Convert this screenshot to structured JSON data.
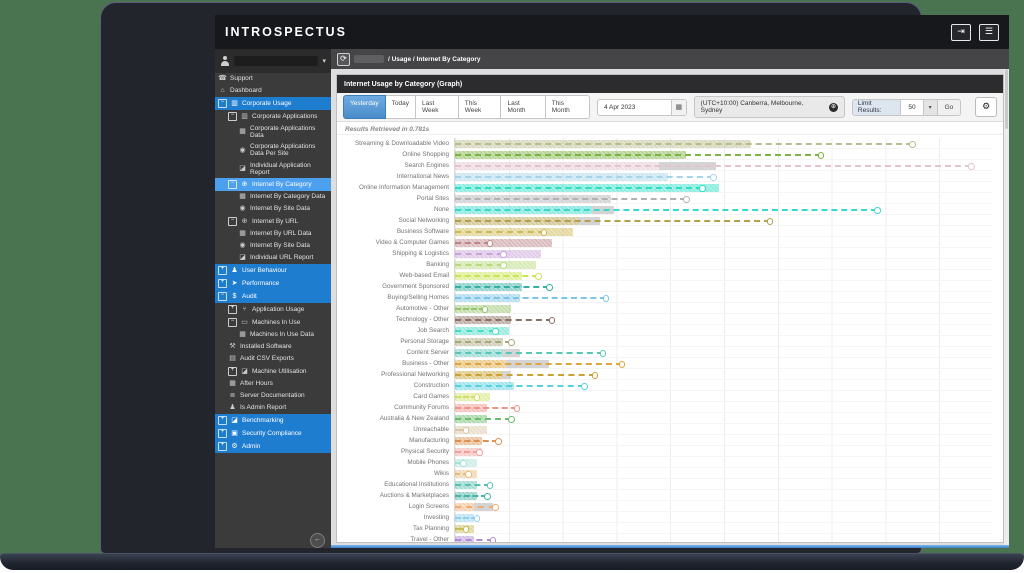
{
  "colors": {
    "backdrop_green": "#4a7350",
    "bezel": "#23252c",
    "sidebar_bg": "#3b3b3b",
    "nav_active_blue": "#1f7dd0",
    "nav_selected_blue": "#4da0ee",
    "active_button_blue": "#5b9bd5",
    "bottom_strip_blue": "#4a90d9"
  },
  "topbar": {
    "logo": "INTROSPECTUS",
    "icons": [
      "logout-icon",
      "menu-icon"
    ]
  },
  "sidebar": {
    "user": {
      "avatar_icon": "user-avatar-icon",
      "name_redacted": true,
      "chevron_icon": "chevron-down-icon"
    },
    "collapse_icon": "collapse-left-icon",
    "items": [
      {
        "label": "Support",
        "level": 0,
        "icon": "phone-icon",
        "expander": null,
        "style": "plain"
      },
      {
        "label": "Dashboard",
        "level": 0,
        "icon": "home-icon",
        "expander": null,
        "style": "plain"
      },
      {
        "label": "Corporate Usage",
        "level": 0,
        "icon": "building-icon",
        "expander": "minus",
        "style": "blue"
      },
      {
        "label": "Corporate Applications",
        "level": 1,
        "icon": "building-icon",
        "expander": "minus",
        "style": "plain"
      },
      {
        "label": "Corporate Applications Data",
        "level": 2,
        "icon": "table-icon",
        "expander": null,
        "style": "plain"
      },
      {
        "label": "Corporate Applications Data Per Site",
        "level": 2,
        "icon": "site-pin-icon",
        "expander": null,
        "style": "plain"
      },
      {
        "label": "Individual Application Report",
        "level": 2,
        "icon": "report-chart-icon",
        "expander": null,
        "style": "plain"
      },
      {
        "label": "Internet By Category",
        "level": 1,
        "icon": "globe-icon",
        "expander": "minus",
        "style": "selected"
      },
      {
        "label": "Internet By Category Data",
        "level": 2,
        "icon": "table-icon",
        "expander": null,
        "style": "plain"
      },
      {
        "label": "Internet By Site Data",
        "level": 2,
        "icon": "site-pin-icon",
        "expander": null,
        "style": "plain"
      },
      {
        "label": "Internet By URL",
        "level": 1,
        "icon": "globe-icon",
        "expander": "minus",
        "style": "plain"
      },
      {
        "label": "Internet By URL Data",
        "level": 2,
        "icon": "table-icon",
        "expander": null,
        "style": "plain"
      },
      {
        "label": "Internet By Site Data",
        "level": 2,
        "icon": "site-pin-icon",
        "expander": null,
        "style": "plain"
      },
      {
        "label": "Individual URL Report",
        "level": 2,
        "icon": "report-chart-icon",
        "expander": null,
        "style": "plain"
      },
      {
        "label": "User Behaviour",
        "level": 0,
        "icon": "person-icon",
        "expander": "plus",
        "style": "blue"
      },
      {
        "label": "Performance",
        "level": 0,
        "icon": "rocket-icon",
        "expander": "plus",
        "style": "blue"
      },
      {
        "label": "Audit",
        "level": 0,
        "icon": "dollar-icon",
        "expander": "minus",
        "style": "blue"
      },
      {
        "label": "Application Usage",
        "level": 1,
        "icon": "usage-icon",
        "expander": "plus",
        "style": "plain"
      },
      {
        "label": "Machines In Use",
        "level": 1,
        "icon": "monitor-icon",
        "expander": "minus",
        "style": "plain"
      },
      {
        "label": "Machines In Use Data",
        "level": 2,
        "icon": "table-icon",
        "expander": null,
        "style": "plain"
      },
      {
        "label": "Installed Software",
        "level": 1,
        "icon": "tools-icon",
        "expander": null,
        "style": "plain"
      },
      {
        "label": "Audit CSV Exports",
        "level": 1,
        "icon": "file-icon",
        "expander": null,
        "style": "plain"
      },
      {
        "label": "Machine Utilisation",
        "level": 1,
        "icon": "report-chart-icon",
        "expander": "plus",
        "style": "plain"
      },
      {
        "label": "After Hours",
        "level": 1,
        "icon": "table-icon",
        "expander": null,
        "style": "plain"
      },
      {
        "label": "Server Documentation",
        "level": 1,
        "icon": "server-icon",
        "expander": null,
        "style": "plain"
      },
      {
        "label": "Is Admin Report",
        "level": 1,
        "icon": "person-icon",
        "expander": null,
        "style": "plain"
      },
      {
        "label": "Benchmarking",
        "level": 0,
        "icon": "chart-icon",
        "expander": "plus",
        "style": "blue"
      },
      {
        "label": "Security Compliance",
        "level": 0,
        "icon": "shield-icon",
        "expander": "plus",
        "style": "blue"
      },
      {
        "label": "Admin",
        "level": 0,
        "icon": "gears-icon",
        "expander": "plus",
        "style": "blue"
      }
    ]
  },
  "breadcrumb": {
    "refresh_icon": "refresh-icon",
    "first_crumb_redacted": true,
    "path_suffix": "/ Usage / Internet By Category"
  },
  "panel": {
    "title": "Internet Usage by Category (Graph)",
    "toolbar": {
      "range_buttons": [
        "Yesterday",
        "Today",
        "Last Week",
        "This Week",
        "Last Month",
        "This Month"
      ],
      "active_range": "Yesterday",
      "date_value": "4 Apr 2023",
      "calendar_icon": "calendar-icon",
      "timezone": "(UTC+10:00) Canberra, Melbourne, Sydney",
      "globe_icon": "globe-icon",
      "limit_label": "Limit Results:",
      "limit_value": "50",
      "go_label": "Go",
      "gear_icon": "gear-icon"
    },
    "results_text": "Results Retrieved in 0.781s"
  },
  "chart_data": {
    "type": "bar",
    "orientation": "horizontal",
    "title": "Internet Usage by Category (Graph)",
    "xlabel": "",
    "ylabel": "",
    "x_axis": {
      "min": 0,
      "max": 100,
      "gridline_interval": 10,
      "tick_labels_visible": false,
      "note": "x-axis tick labels are cut off by the screen edge; values are estimated as percent of plot width"
    },
    "series_legend": {
      "bar": "usage (hatched bar)",
      "overlay": "secondary gray segment",
      "marker": "dashed line to circle marker (comparison value)"
    },
    "rows": [
      {
        "label": "Streaming & Downloadable Video",
        "value": 55,
        "overlay": null,
        "marker": 85,
        "color": "#b9bd8d"
      },
      {
        "label": "Online Shopping",
        "value": 43,
        "overlay": null,
        "marker": 68,
        "color": "#7cb342"
      },
      {
        "label": "Search Engines",
        "value": 38,
        "overlay": 48.5,
        "marker": 96,
        "color": "#e3c3d0"
      },
      {
        "label": "International News",
        "value": 39.5,
        "overlay": null,
        "marker": 48,
        "color": "#a6d4ea"
      },
      {
        "label": "Online Information Management",
        "value": 49,
        "overlay": null,
        "marker": 46,
        "color": "#2ddec6"
      },
      {
        "label": "Portal Sites",
        "value": 29,
        "overlay": null,
        "marker": 43,
        "color": "#b4b1b4"
      },
      {
        "label": "None",
        "value": 25.5,
        "overlay": 29.5,
        "marker": 78.5,
        "color": "#38d9ca"
      },
      {
        "label": "Social Networking",
        "value": 23,
        "overlay": 27,
        "marker": 58.5,
        "color": "#b3a04a"
      },
      {
        "label": "Business Software",
        "value": 22,
        "overlay": null,
        "marker": 16.5,
        "color": "#cdb953"
      },
      {
        "label": "Video & Computer Games",
        "value": 18,
        "overlay": null,
        "marker": 6.5,
        "color": "#bd8588"
      },
      {
        "label": "Shipping & Logistics",
        "value": 16,
        "overlay": null,
        "marker": 9,
        "color": "#c9a3d9"
      },
      {
        "label": "Banking",
        "value": 15,
        "overlay": null,
        "marker": 9,
        "color": "#b8d97e"
      },
      {
        "label": "Web-based Email",
        "value": 12.5,
        "overlay": null,
        "marker": 15.5,
        "color": "#cbe456"
      },
      {
        "label": "Government Sponsored",
        "value": 12.5,
        "overlay": null,
        "marker": 17.5,
        "color": "#35b0a4"
      },
      {
        "label": "Buying/Selling Homes",
        "value": 12,
        "overlay": null,
        "marker": 28,
        "color": "#7cc5e8"
      },
      {
        "label": "Automotive - Other",
        "value": 10.5,
        "overlay": null,
        "marker": 5.5,
        "color": "#97c36c"
      },
      {
        "label": "Technology - Other",
        "value": 10.5,
        "overlay": null,
        "marker": 18,
        "color": "#8a6f62"
      },
      {
        "label": "Job Search",
        "value": 10,
        "overlay": null,
        "marker": 7.5,
        "color": "#45dcc6"
      },
      {
        "label": "Personal Storage",
        "value": 9,
        "overlay": null,
        "marker": 10.5,
        "color": "#a9a87b"
      },
      {
        "label": "Content Server",
        "value": 9,
        "overlay": 12,
        "marker": 27.5,
        "color": "#59c6b8"
      },
      {
        "label": "Business - Other",
        "value": 9.5,
        "overlay": 17.5,
        "marker": 31,
        "color": "#dda63c"
      },
      {
        "label": "Professional Networking",
        "value": 9,
        "overlay": 10.5,
        "marker": 26,
        "color": "#c9a233"
      },
      {
        "label": "Construction",
        "value": 11,
        "overlay": null,
        "marker": 24,
        "color": "#55d0de"
      },
      {
        "label": "Card Games",
        "value": 6.5,
        "overlay": null,
        "marker": 4,
        "color": "#cfe066"
      },
      {
        "label": "Community Forums",
        "value": 6,
        "overlay": null,
        "marker": 11.5,
        "color": "#ef9288"
      },
      {
        "label": "Australia & New Zealand",
        "value": 6,
        "overlay": null,
        "marker": 10.5,
        "color": "#6cbb6e"
      },
      {
        "label": "Unreachable",
        "value": 6,
        "overlay": null,
        "marker": 2,
        "color": "#d9c7a6"
      },
      {
        "label": "Manufacturing",
        "value": 5,
        "overlay": null,
        "marker": 8,
        "color": "#dc9150"
      },
      {
        "label": "Physical Security",
        "value": 5,
        "overlay": null,
        "marker": 4.5,
        "color": "#f0a19b"
      },
      {
        "label": "Mobile Phones",
        "value": 4,
        "overlay": null,
        "marker": 1.5,
        "color": "#a5e0d8"
      },
      {
        "label": "Wikis",
        "value": 4,
        "overlay": null,
        "marker": 2.5,
        "color": "#e6bc7e"
      },
      {
        "label": "Educational Institutions",
        "value": 4,
        "overlay": null,
        "marker": 6.5,
        "color": "#5bc0b2"
      },
      {
        "label": "Auctions & Marketplaces",
        "value": 4,
        "overlay": null,
        "marker": 6,
        "color": "#46b3a4"
      },
      {
        "label": "Login Screens",
        "value": 3.5,
        "overlay": 7,
        "marker": 7.5,
        "color": "#eead72"
      },
      {
        "label": "Investing",
        "value": 3.5,
        "overlay": null,
        "marker": 4,
        "color": "#8fd0ef"
      },
      {
        "label": "Tax Planning",
        "value": 3.5,
        "overlay": null,
        "marker": 2,
        "color": "#c4bc55"
      },
      {
        "label": "Travel - Other",
        "value": 3.5,
        "overlay": null,
        "marker": 7,
        "color": "#b08ad2"
      }
    ]
  }
}
